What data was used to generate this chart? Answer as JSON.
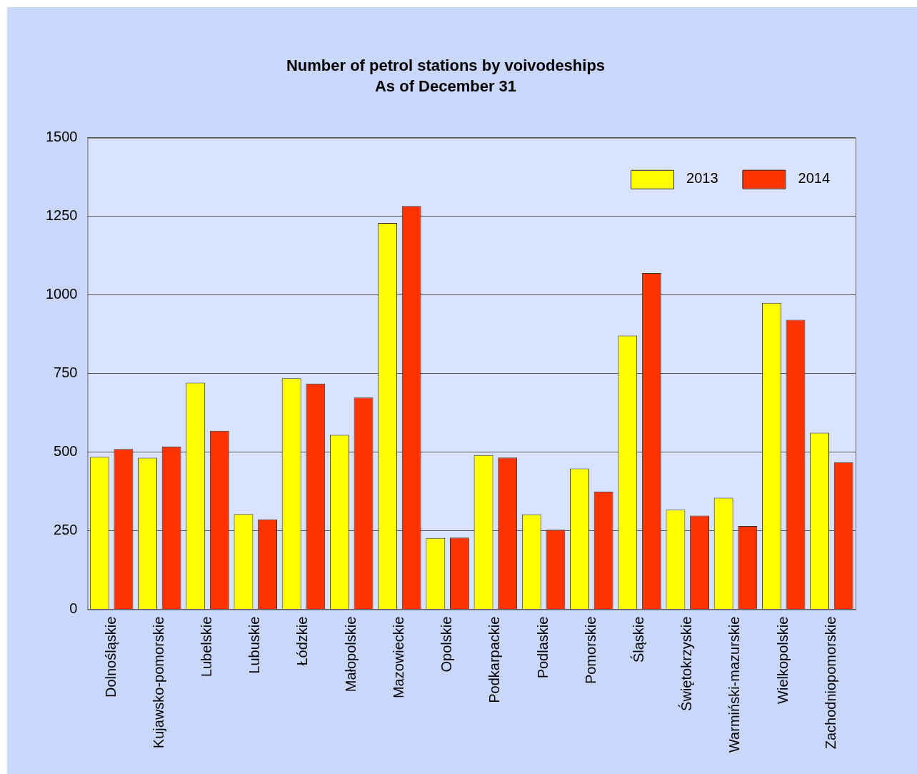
{
  "chart_data": {
    "type": "bar",
    "title": "Number of petrol stations by voivodeships",
    "subtitle": "As of December 31",
    "categories": [
      "Dolnośląskie",
      "Kujawsko-pomorskie",
      "Lubelskie",
      "Lubuskie",
      "Łódzkie",
      "Małopolskie",
      "Mazowieckie",
      "Opolskie",
      "Podkarpackie",
      "Podlaskie",
      "Pomorskie",
      "Śląskie",
      "Świętokrzyskie",
      "Warmiński-mazurskie",
      "Wielkopolskie",
      "Zachodniopomorskie"
    ],
    "series": [
      {
        "name": "2013",
        "color": "#ffff00",
        "values": [
          485,
          482,
          721,
          303,
          735,
          555,
          1229,
          227,
          491,
          302,
          448,
          871,
          317,
          355,
          975,
          562
        ]
      },
      {
        "name": "2014",
        "color": "#ff3300",
        "values": [
          510,
          518,
          568,
          286,
          718,
          674,
          1283,
          228,
          483,
          253,
          375,
          1070,
          298,
          265,
          921,
          468
        ]
      }
    ],
    "ylim": [
      0,
      1500
    ],
    "yticks": [
      0,
      250,
      500,
      750,
      1000,
      1250,
      1500
    ],
    "grid": "y",
    "legend": "top right"
  }
}
